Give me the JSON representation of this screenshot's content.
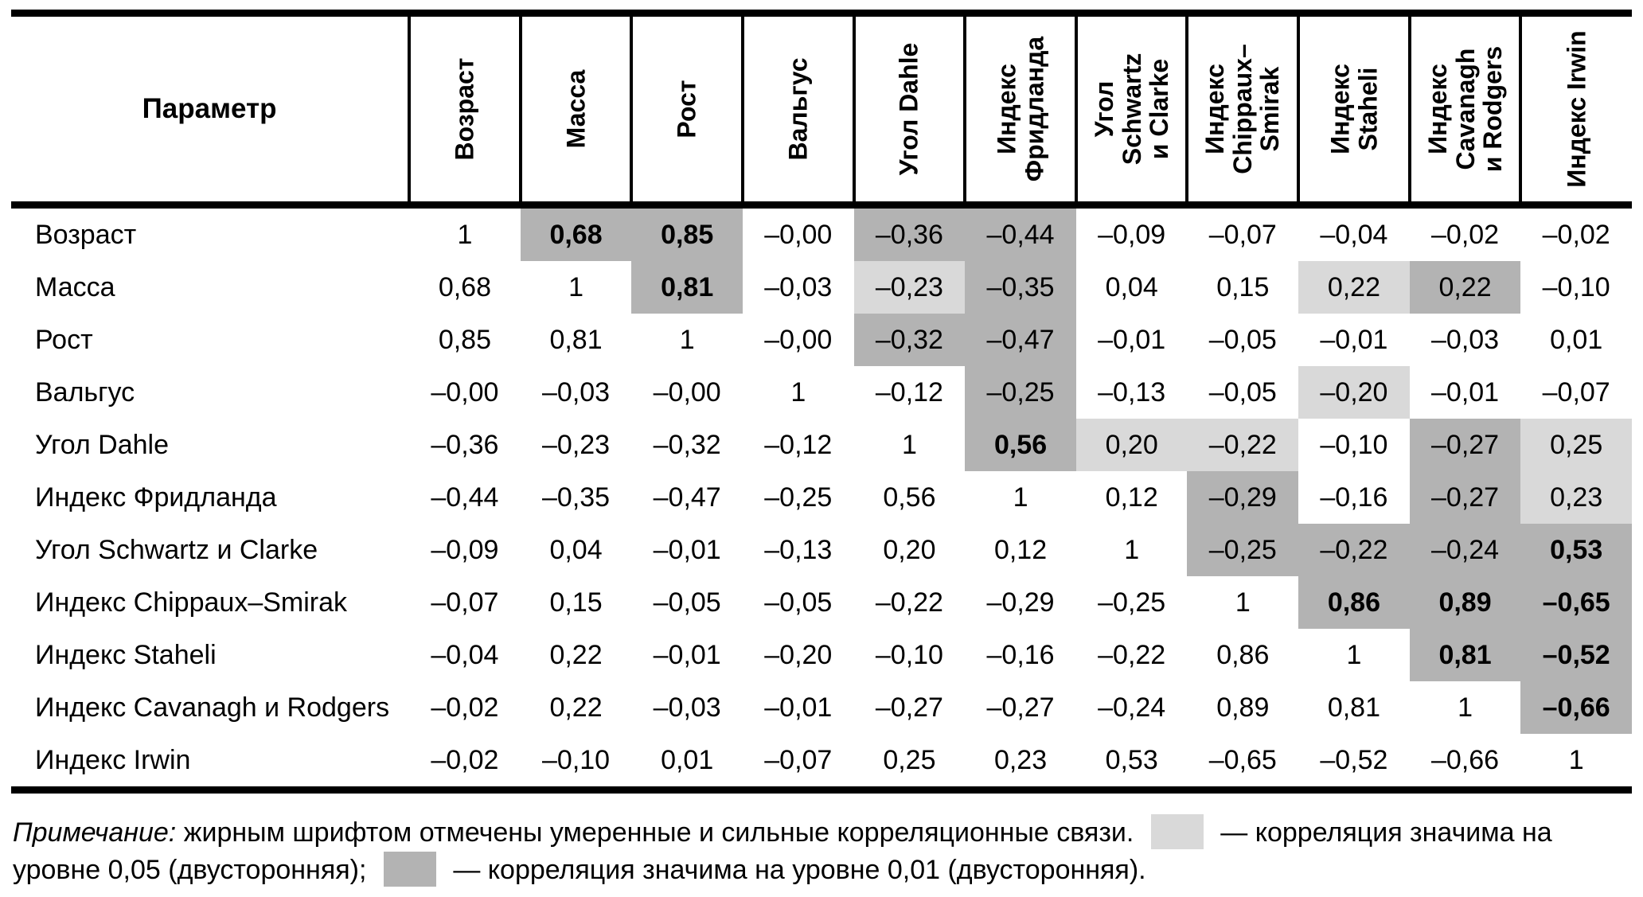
{
  "colors": {
    "significant_005": "#d9d9d9",
    "significant_001": "#b3b3b3",
    "border": "#000000"
  },
  "table": {
    "corner_header": "Параметр",
    "column_headers": [
      "Возраст",
      "Масса",
      "Рост",
      "Вальгус",
      "Угол Dahle",
      "Индекс\nФридланда",
      "Угол\nSchwartz\nи Clarke",
      "Индекс\nChippaux–\nSmirak",
      "Индекс\nStaheli",
      "Индекс\nCavanagh\nи Rodgers",
      "Индекс Irwin"
    ],
    "rows": [
      {
        "label": "Возраст",
        "cells": [
          {
            "v": "1"
          },
          {
            "v": "0,68",
            "s": "dark",
            "b": true
          },
          {
            "v": "0,85",
            "s": "dark",
            "b": true
          },
          {
            "v": "–0,00"
          },
          {
            "v": "–0,36",
            "s": "dark"
          },
          {
            "v": "–0,44",
            "s": "dark"
          },
          {
            "v": "–0,09"
          },
          {
            "v": "–0,07"
          },
          {
            "v": "–0,04"
          },
          {
            "v": "–0,02"
          },
          {
            "v": "–0,02"
          }
        ]
      },
      {
        "label": "Масса",
        "cells": [
          {
            "v": "0,68"
          },
          {
            "v": "1"
          },
          {
            "v": "0,81",
            "s": "dark",
            "b": true
          },
          {
            "v": "–0,03"
          },
          {
            "v": "–0,23",
            "s": "light"
          },
          {
            "v": "–0,35",
            "s": "dark"
          },
          {
            "v": "0,04"
          },
          {
            "v": "0,15"
          },
          {
            "v": "0,22",
            "s": "light"
          },
          {
            "v": "0,22",
            "s": "dark"
          },
          {
            "v": "–0,10"
          }
        ]
      },
      {
        "label": "Рост",
        "cells": [
          {
            "v": "0,85"
          },
          {
            "v": "0,81"
          },
          {
            "v": "1"
          },
          {
            "v": "–0,00"
          },
          {
            "v": "–0,32",
            "s": "dark"
          },
          {
            "v": "–0,47",
            "s": "dark"
          },
          {
            "v": "–0,01"
          },
          {
            "v": "–0,05"
          },
          {
            "v": "–0,01"
          },
          {
            "v": "–0,03"
          },
          {
            "v": "0,01"
          }
        ]
      },
      {
        "label": "Вальгус",
        "cells": [
          {
            "v": "–0,00"
          },
          {
            "v": "–0,03"
          },
          {
            "v": "–0,00"
          },
          {
            "v": "1"
          },
          {
            "v": "–0,12"
          },
          {
            "v": "–0,25",
            "s": "dark"
          },
          {
            "v": "–0,13"
          },
          {
            "v": "–0,05"
          },
          {
            "v": "–0,20",
            "s": "light"
          },
          {
            "v": "–0,01"
          },
          {
            "v": "–0,07"
          }
        ]
      },
      {
        "label": "Угол Dahle",
        "cells": [
          {
            "v": "–0,36"
          },
          {
            "v": "–0,23"
          },
          {
            "v": "–0,32"
          },
          {
            "v": "–0,12"
          },
          {
            "v": "1"
          },
          {
            "v": "0,56",
            "s": "dark",
            "b": true
          },
          {
            "v": "0,20",
            "s": "light"
          },
          {
            "v": "–0,22",
            "s": "light"
          },
          {
            "v": "–0,10"
          },
          {
            "v": "–0,27",
            "s": "dark"
          },
          {
            "v": "0,25",
            "s": "light"
          }
        ]
      },
      {
        "label": "Индекс Фридланда",
        "cells": [
          {
            "v": "–0,44"
          },
          {
            "v": "–0,35"
          },
          {
            "v": "–0,47"
          },
          {
            "v": "–0,25"
          },
          {
            "v": "0,56"
          },
          {
            "v": "1"
          },
          {
            "v": "0,12"
          },
          {
            "v": "–0,29",
            "s": "dark"
          },
          {
            "v": "–0,16"
          },
          {
            "v": "–0,27",
            "s": "dark"
          },
          {
            "v": "0,23",
            "s": "light"
          }
        ]
      },
      {
        "label": "Угол Schwartz и Clarke",
        "cells": [
          {
            "v": "–0,09"
          },
          {
            "v": "0,04"
          },
          {
            "v": "–0,01"
          },
          {
            "v": "–0,13"
          },
          {
            "v": "0,20"
          },
          {
            "v": "0,12"
          },
          {
            "v": "1"
          },
          {
            "v": "–0,25",
            "s": "dark"
          },
          {
            "v": "–0,22",
            "s": "dark"
          },
          {
            "v": "–0,24",
            "s": "dark"
          },
          {
            "v": "0,53",
            "s": "dark",
            "b": true
          }
        ]
      },
      {
        "label": "Индекс Chippaux–Smirak",
        "cells": [
          {
            "v": "–0,07"
          },
          {
            "v": "0,15"
          },
          {
            "v": "–0,05"
          },
          {
            "v": "–0,05"
          },
          {
            "v": "–0,22"
          },
          {
            "v": "–0,29"
          },
          {
            "v": "–0,25"
          },
          {
            "v": "1"
          },
          {
            "v": "0,86",
            "s": "dark",
            "b": true
          },
          {
            "v": "0,89",
            "s": "dark",
            "b": true
          },
          {
            "v": "–0,65",
            "s": "dark",
            "b": true
          }
        ]
      },
      {
        "label": "Индекс Staheli",
        "cells": [
          {
            "v": "–0,04"
          },
          {
            "v": "0,22"
          },
          {
            "v": "–0,01"
          },
          {
            "v": "–0,20"
          },
          {
            "v": "–0,10"
          },
          {
            "v": "–0,16"
          },
          {
            "v": "–0,22"
          },
          {
            "v": "0,86"
          },
          {
            "v": "1"
          },
          {
            "v": "0,81",
            "s": "dark",
            "b": true
          },
          {
            "v": "–0,52",
            "s": "dark",
            "b": true
          }
        ]
      },
      {
        "label": "Индекс Cavanagh и Rodgers",
        "cells": [
          {
            "v": "–0,02"
          },
          {
            "v": "0,22"
          },
          {
            "v": "–0,03"
          },
          {
            "v": "–0,01"
          },
          {
            "v": "–0,27"
          },
          {
            "v": "–0,27"
          },
          {
            "v": "–0,24"
          },
          {
            "v": "0,89"
          },
          {
            "v": "0,81"
          },
          {
            "v": "1"
          },
          {
            "v": "–0,66",
            "s": "dark",
            "b": true
          }
        ]
      },
      {
        "label": "Индекс Irwin",
        "cells": [
          {
            "v": "–0,02"
          },
          {
            "v": "–0,10"
          },
          {
            "v": "0,01"
          },
          {
            "v": "–0,07"
          },
          {
            "v": "0,25"
          },
          {
            "v": "0,23"
          },
          {
            "v": "0,53"
          },
          {
            "v": "–0,65"
          },
          {
            "v": "–0,52"
          },
          {
            "v": "–0,66"
          },
          {
            "v": "1"
          }
        ]
      }
    ]
  },
  "note": {
    "prefix": "Примечание:",
    "body": "жирным шрифтом отмечены умеренные и сильные корреляционные связи.",
    "legend_05": "— корреляция значима на уровне 0,05 (двусторонняя);",
    "legend_01": "— корреляция значима на уровне 0,01 (двусторонняя)."
  }
}
